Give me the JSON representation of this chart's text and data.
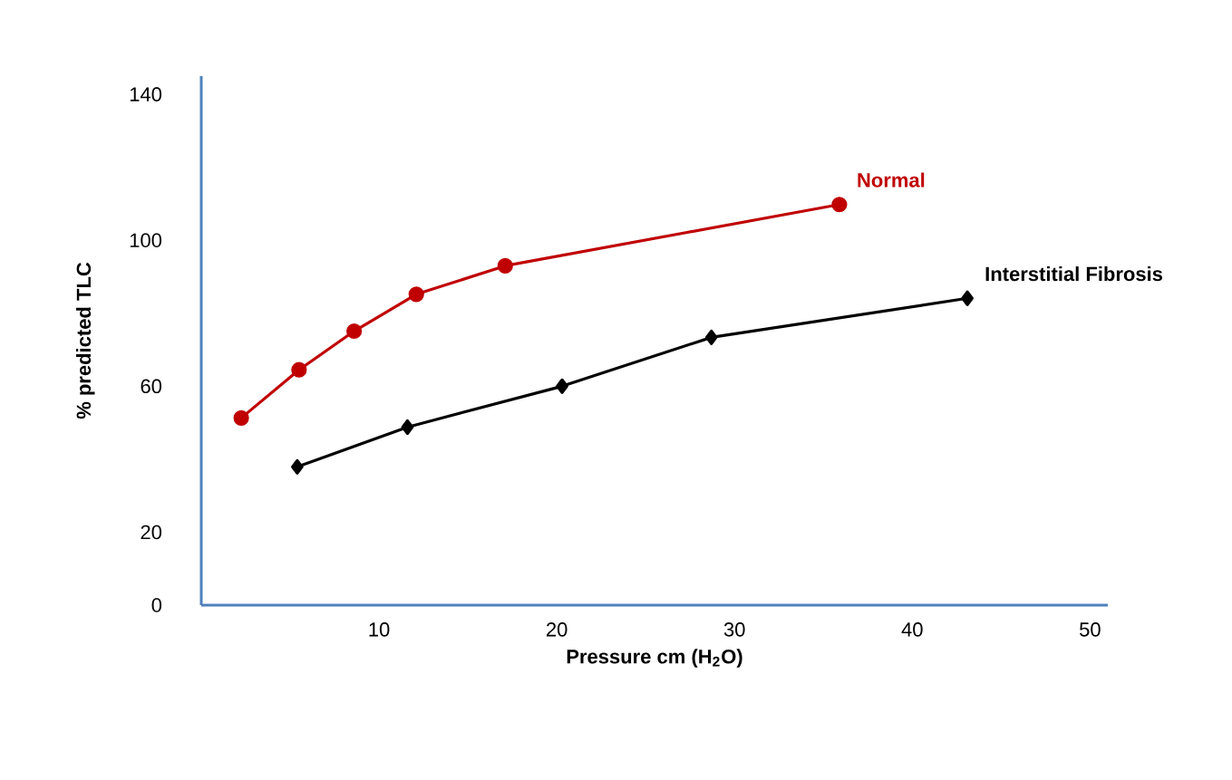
{
  "chart_data": {
    "type": "line",
    "xlabel": "Pressure cm (H$_{2}$O)",
    "ylabel": "% predicted TLC",
    "xlim": [
      0,
      51
    ],
    "ylim": [
      0,
      145
    ],
    "xticks": [
      10,
      20,
      30,
      40,
      50
    ],
    "yticks": [
      0,
      20,
      60,
      100,
      140
    ],
    "grid": false,
    "legend": false,
    "line_style": "solid",
    "series": [
      {
        "name": "Normal",
        "color": "#c00000",
        "marker": "circle",
        "x": [
          2.25,
          5.5,
          8.6,
          12.1,
          17.1,
          35.9
        ],
        "values": [
          51.3,
          64.5,
          75.1,
          85.2,
          93.0,
          109.8
        ]
      },
      {
        "name": "Interstitial Fibrosis",
        "color": "#000000",
        "marker": "diamond",
        "x": [
          5.4,
          11.6,
          20.3,
          28.7,
          43.1
        ],
        "values": [
          37.9,
          48.8,
          60.0,
          73.4,
          84.1
        ]
      }
    ]
  }
}
